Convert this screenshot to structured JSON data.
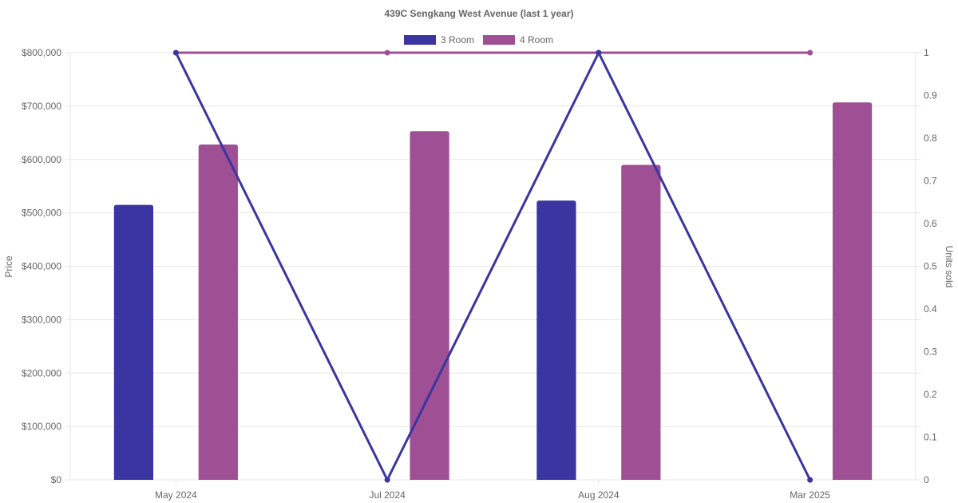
{
  "chart_data": {
    "type": "bar",
    "title": "439C Sengkang West Avenue (last 1 year)",
    "categories": [
      "May 2024",
      "Jul 2024",
      "Aug 2024",
      "Mar 2025"
    ],
    "y_left": {
      "label": "Price",
      "ylim": [
        0,
        800000
      ],
      "ticks": [
        "$0",
        "$100,000",
        "$200,000",
        "$300,000",
        "$400,000",
        "$500,000",
        "$600,000",
        "$700,000",
        "$800,000"
      ]
    },
    "y_right": {
      "label": "Units sold",
      "ylim": [
        0,
        1
      ],
      "ticks": [
        "0",
        "0.1",
        "0.2",
        "0.3",
        "0.4",
        "0.5",
        "0.6",
        "0.7",
        "0.8",
        "0.9",
        "1"
      ]
    },
    "grid": true,
    "legend_position": "top-center",
    "series": [
      {
        "name": "3 Room",
        "color": "#3a35a0",
        "bar_values": [
          515000,
          null,
          523000,
          null
        ],
        "line_values": [
          1,
          0,
          1,
          0
        ]
      },
      {
        "name": "4 Room",
        "color": "#9f5094",
        "bar_values": [
          628000,
          653000,
          590000,
          707000
        ],
        "line_values": [
          1,
          1,
          1,
          1
        ]
      }
    ]
  }
}
